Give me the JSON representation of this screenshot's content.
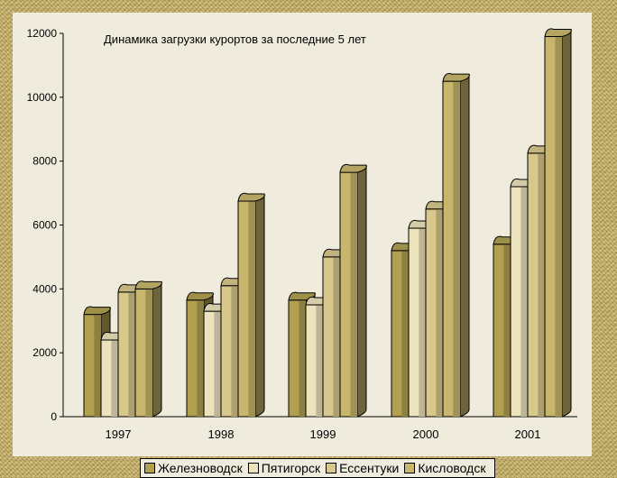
{
  "chart_data": {
    "type": "bar",
    "title": "Динамика загрузки курортов за последние 5 лет",
    "categories": [
      "1997",
      "1998",
      "1999",
      "2000",
      "2001"
    ],
    "series": [
      {
        "name": "Железноводск",
        "color": "#b0a050",
        "values": [
          3200,
          3650,
          3650,
          5200,
          5400
        ]
      },
      {
        "name": "Пятигорск",
        "color": "#ece2bc",
        "values": [
          2400,
          3300,
          3500,
          5900,
          7200
        ]
      },
      {
        "name": "Ессентуки",
        "color": "#d8c88c",
        "values": [
          3900,
          4100,
          5000,
          6500,
          8250
        ]
      },
      {
        "name": "Кисловодск",
        "color": "#c8b66c",
        "values": [
          4000,
          6750,
          7650,
          10500,
          11900
        ]
      }
    ],
    "yticks": [
      "0",
      "2000",
      "4000",
      "6000",
      "8000",
      "10000",
      "12000"
    ],
    "ylim": [
      0,
      12000
    ],
    "grid": false,
    "legend": "bottom",
    "xlabel": "",
    "ylabel": ""
  }
}
